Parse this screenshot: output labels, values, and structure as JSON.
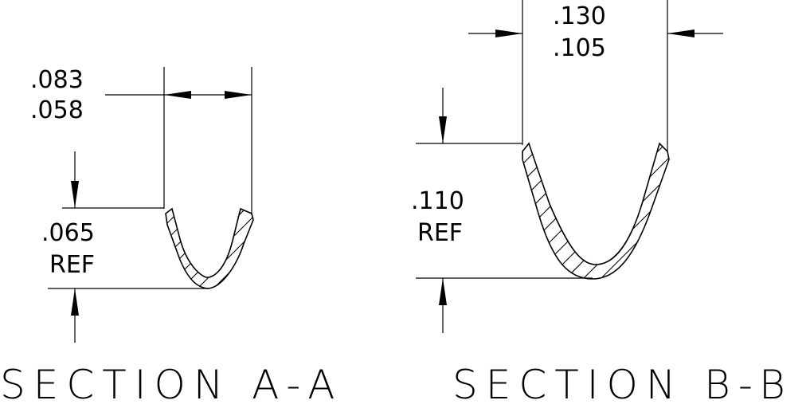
{
  "section_a": {
    "title": "SECTION A-A",
    "width_max": ".083",
    "width_min": ".058",
    "depth_value": ".065",
    "depth_note": "REF"
  },
  "section_b": {
    "title": "SECTION B-B",
    "width_max": ".130",
    "width_min": ".105",
    "depth_value": ".110",
    "depth_note": "REF"
  }
}
